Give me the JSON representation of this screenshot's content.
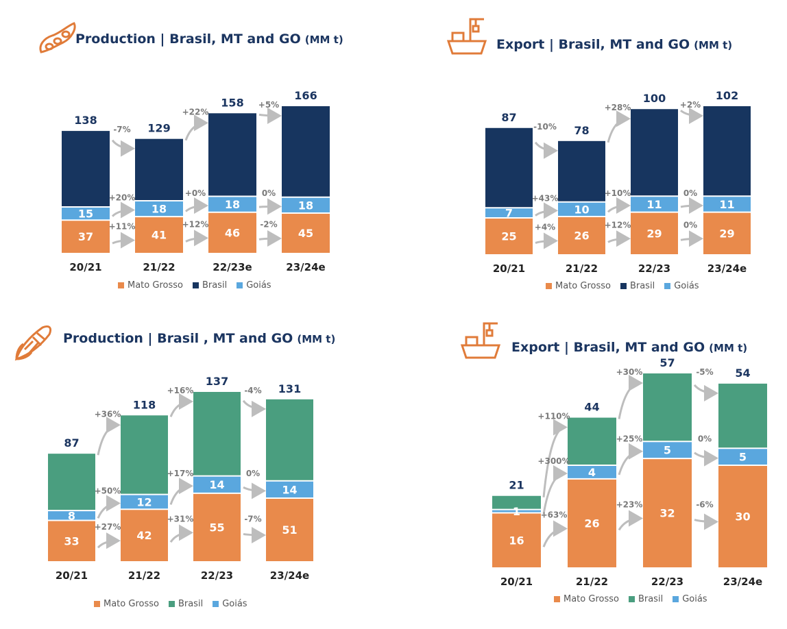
{
  "colors": {
    "mato_grosso": "#e98a4b",
    "brasil_dark": "#17355f",
    "brasil_green": "#4a9e7f",
    "goias": "#5aa7de",
    "title": "#1b3560",
    "icon": "#e07b39",
    "pct": "#7a7a7a"
  },
  "chart_data": [
    {
      "type": "bar",
      "title": "Production | Brasil, MT and GO",
      "unit": "(MM t)",
      "icon": "soybean-icon",
      "categories": [
        "20/21",
        "21/22",
        "22/23e",
        "23/24e"
      ],
      "series": [
        {
          "name": "Mato Grosso",
          "values": [
            37,
            41,
            46,
            45
          ]
        },
        {
          "name": "Brasil",
          "values": [
            138,
            129,
            158,
            166
          ]
        },
        {
          "name": "Goiás",
          "values": [
            15,
            18,
            18,
            18
          ]
        }
      ],
      "changes": {
        "brasil": [
          "-7%",
          "+22%",
          "+5%"
        ],
        "goias": [
          "+20%",
          "+0%",
          "0%"
        ],
        "mato_grosso": [
          "+11%",
          "+12%",
          "-2%"
        ]
      },
      "legend": [
        "Mato Grosso",
        "Brasil",
        "Goiás"
      ],
      "ylim": [
        0,
        166
      ]
    },
    {
      "type": "bar",
      "title": "Export | Brasil, MT and GO",
      "unit": "(MM t)",
      "icon": "ship-crane-icon",
      "categories": [
        "20/21",
        "21/22",
        "22/23",
        "23/24e"
      ],
      "series": [
        {
          "name": "Mato Grosso",
          "values": [
            25,
            26,
            29,
            29
          ]
        },
        {
          "name": "Brasil",
          "values": [
            87,
            78,
            100,
            102
          ]
        },
        {
          "name": "Goiás",
          "values": [
            7,
            10,
            11,
            11
          ]
        }
      ],
      "changes": {
        "brasil": [
          "-10%",
          "+28%",
          "+2%"
        ],
        "goias": [
          "+43%",
          "+10%",
          "0%"
        ],
        "mato_grosso": [
          "+4%",
          "+12%",
          "0%"
        ]
      },
      "legend": [
        "Mato Grosso",
        "Brasil",
        "Goiás"
      ],
      "ylim": [
        0,
        102
      ]
    },
    {
      "type": "bar",
      "title": "Production | Brasil , MT and GO",
      "unit": "(MM t)",
      "icon": "corn-icon",
      "categories": [
        "20/21",
        "21/22",
        "22/23",
        "23/24e"
      ],
      "series": [
        {
          "name": "Mato Grosso",
          "values": [
            33,
            42,
            55,
            51
          ]
        },
        {
          "name": "Brasil",
          "values": [
            87,
            118,
            137,
            131
          ]
        },
        {
          "name": "Goiás",
          "values": [
            8,
            12,
            14,
            14
          ]
        }
      ],
      "changes": {
        "brasil": [
          "+36%",
          "+16%",
          "-4%"
        ],
        "goias": [
          "+50%",
          "+17%",
          "0%"
        ],
        "mato_grosso": [
          "+27%",
          "+31%",
          "-7%"
        ]
      },
      "legend": [
        "Mato Grosso",
        "Brasil",
        "Goiás"
      ],
      "ylim": [
        0,
        137
      ]
    },
    {
      "type": "bar",
      "title": "Export | Brasil, MT and GO",
      "unit": "(MM t)",
      "icon": "ship-crane-icon",
      "categories": [
        "20/21",
        "21/22",
        "22/23",
        "23/24e"
      ],
      "series": [
        {
          "name": "Mato Grosso",
          "values": [
            16,
            26,
            32,
            30
          ]
        },
        {
          "name": "Brasil",
          "values": [
            21,
            44,
            57,
            54
          ]
        },
        {
          "name": "Goiás",
          "values": [
            1,
            4,
            5,
            5
          ]
        }
      ],
      "changes": {
        "brasil": [
          "+110%",
          "+30%",
          "-5%"
        ],
        "goias": [
          "+300%",
          "+25%",
          "0%"
        ],
        "mato_grosso": [
          "+63%",
          "+23%",
          "-6%"
        ]
      },
      "legend": [
        "Mato Grosso",
        "Brasil",
        "Goiás"
      ],
      "ylim": [
        0,
        57
      ]
    }
  ]
}
